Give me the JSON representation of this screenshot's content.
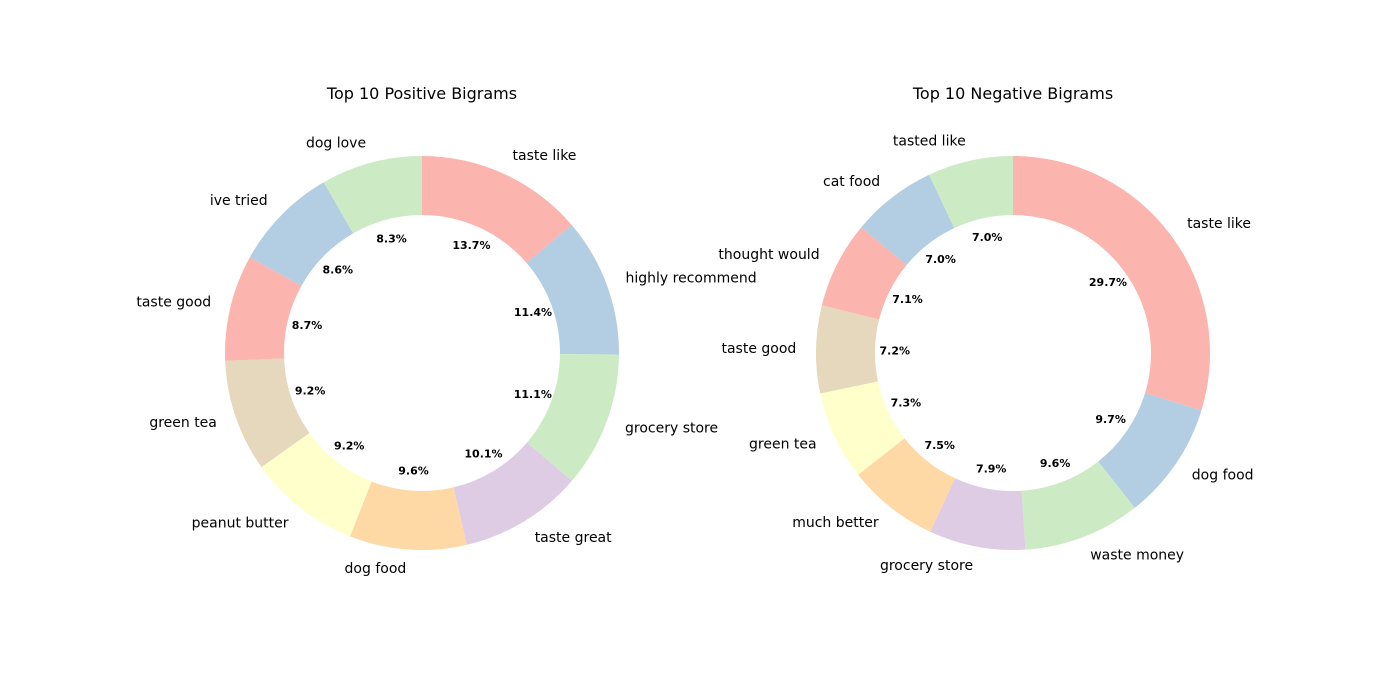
{
  "palette": [
    "#fbb4ae",
    "#b3cde3",
    "#ccebc5",
    "#decbe4",
    "#fed9a6",
    "#ffffcc",
    "#e5d8bd"
  ],
  "chart_data": [
    {
      "type": "pie",
      "subtype": "donut",
      "title": "Top 10 Positive Bigrams",
      "start_angle_deg": 90,
      "direction": "clockwise",
      "categories": [
        "taste like",
        "highly recommend",
        "grocery store",
        "taste great",
        "dog food",
        "peanut butter",
        "green tea",
        "taste good",
        "ive tried",
        "dog love"
      ],
      "values": [
        13.7,
        11.4,
        11.1,
        10.1,
        9.6,
        9.2,
        9.2,
        8.7,
        8.6,
        8.3
      ],
      "value_labels": [
        "13.7%",
        "11.4%",
        "11.1%",
        "10.1%",
        "9.6%",
        "9.2%",
        "9.2%",
        "8.7%",
        "8.6%",
        "8.3%"
      ],
      "colors": [
        "#fbb4ae",
        "#b3cde3",
        "#ccebc5",
        "#decbe4",
        "#fed9a6",
        "#ffffcc",
        "#e5d8bd",
        "#fbb4ae",
        "#b3cde3",
        "#ccebc5"
      ]
    },
    {
      "type": "pie",
      "subtype": "donut",
      "title": "Top 10 Negative Bigrams",
      "start_angle_deg": 90,
      "direction": "clockwise",
      "categories": [
        "taste like",
        "dog food",
        "waste money",
        "grocery store",
        "much better",
        "green tea",
        "taste good",
        "thought would",
        "cat food",
        "tasted like"
      ],
      "values": [
        29.7,
        9.7,
        9.6,
        7.9,
        7.5,
        7.3,
        7.2,
        7.1,
        7.0,
        7.0
      ],
      "value_labels": [
        "29.7%",
        "9.7%",
        "9.6%",
        "7.9%",
        "7.5%",
        "7.3%",
        "7.2%",
        "7.1%",
        "7.0%",
        "7.0%"
      ],
      "colors": [
        "#fbb4ae",
        "#b3cde3",
        "#ccebc5",
        "#decbe4",
        "#fed9a6",
        "#ffffcc",
        "#e5d8bd",
        "#fbb4ae",
        "#b3cde3",
        "#ccebc5"
      ]
    }
  ]
}
